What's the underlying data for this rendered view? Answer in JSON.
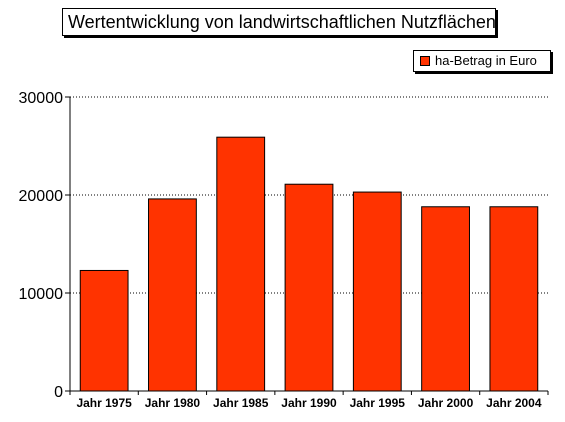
{
  "chart_data": {
    "type": "bar",
    "title": "Wertentwicklung von landwirtschaftlichen Nutzflächen",
    "categories": [
      "Jahr 1975",
      "Jahr 1980",
      "Jahr 1985",
      "Jahr 1990",
      "Jahr 1995",
      "Jahr 2000",
      "Jahr 2004"
    ],
    "series": [
      {
        "name": "ha-Betrag in Euro",
        "values": [
          12300,
          19600,
          25900,
          21100,
          20300,
          18800,
          18800
        ],
        "color": "#ff3300"
      }
    ],
    "ylim": [
      0,
      30000
    ],
    "yticks": [
      "0",
      "10000",
      "20000",
      "30000"
    ],
    "grid": true,
    "legend_position": "top-right"
  }
}
